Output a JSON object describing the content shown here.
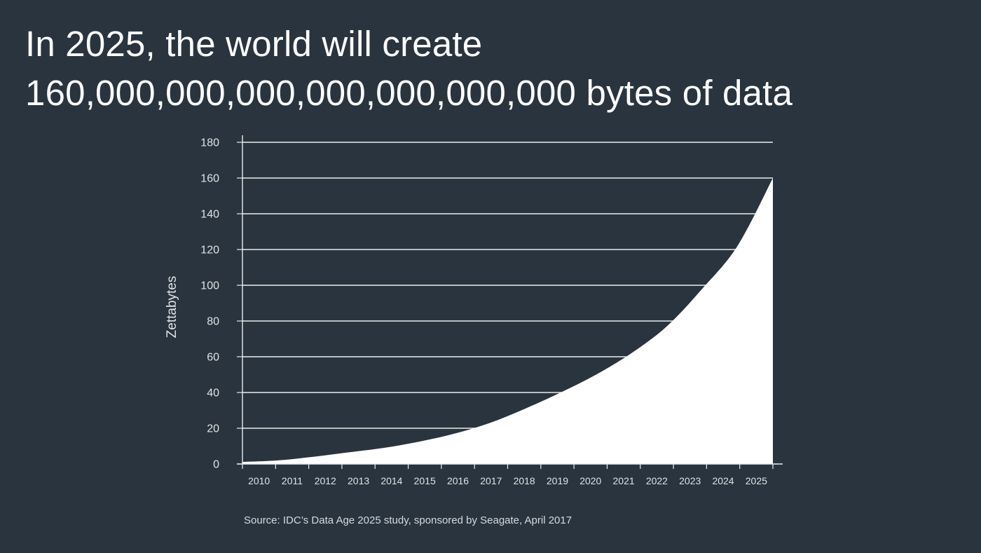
{
  "slide": {
    "title_line1": "In 2025, the world will create",
    "title_line2": "160,000,000,000,000,000,000,000 bytes of data",
    "source": "Source: IDC’s Data Age 2025 study, sponsored by Seagate, April 2017",
    "background_color": "#29343e"
  },
  "chart_data": {
    "type": "area",
    "title": "",
    "xlabel": "",
    "ylabel": "Zettabytes",
    "categories": [
      "2010",
      "2011",
      "2012",
      "2013",
      "2014",
      "2015",
      "2016",
      "2017",
      "2018",
      "2019",
      "2020",
      "2021",
      "2022",
      "2023",
      "2024",
      "2025"
    ],
    "series": [
      {
        "values": [
          1.2,
          2,
          4,
          6.5,
          9,
          12.5,
          17,
          23,
          31,
          40,
          50,
          62,
          77,
          98,
          122,
          160
        ],
        "color": "#ffffff"
      }
    ],
    "ylim": [
      0,
      180
    ],
    "yticks": [
      "0",
      "20",
      "40",
      "60",
      "80",
      "100",
      "120",
      "140",
      "160",
      "180"
    ],
    "grid": true,
    "legend": "none"
  }
}
